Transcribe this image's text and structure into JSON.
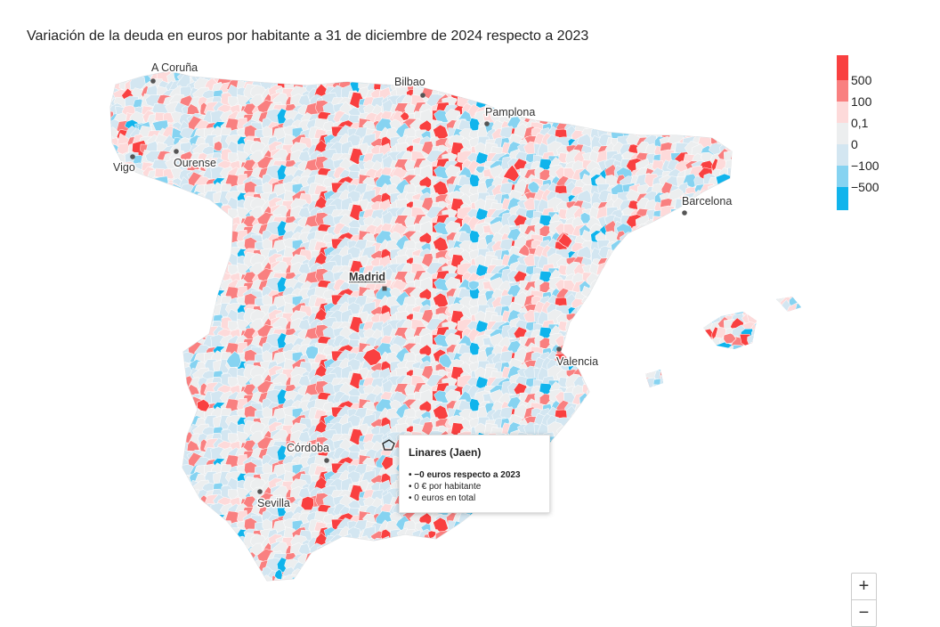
{
  "title": "Variación de la deuda en euros por habitante a 31 de diciembre de 2024 respecto a 2023",
  "legend": {
    "items": [
      {
        "label": "500",
        "color": "#f94040"
      },
      {
        "label": "100",
        "color": "#f98080"
      },
      {
        "label": "0,1",
        "color": "#fddada"
      },
      {
        "label": "0",
        "color": "#eceeef"
      },
      {
        "label": "−100",
        "color": "#d3e6f1"
      },
      {
        "label": "−500",
        "color": "#86d3f1"
      },
      {
        "label": "",
        "color": "#10b4ec"
      }
    ]
  },
  "cities": [
    {
      "name": "A Coruña"
    },
    {
      "name": "Bilbao"
    },
    {
      "name": "Pamplona"
    },
    {
      "name": "Vigo"
    },
    {
      "name": "Ourense"
    },
    {
      "name": "Barcelona"
    },
    {
      "name": "Madrid",
      "capital": true
    },
    {
      "name": "Valencia"
    },
    {
      "name": "Córdoba"
    },
    {
      "name": "Sevilla"
    }
  ],
  "tooltip": {
    "title": "Linares (Jaen)",
    "line1": "• −0 euros respecto a 2023",
    "line2": "• 0 € por habitante",
    "line3": "• 0 euros en total"
  },
  "zoom": {
    "plus": "+",
    "minus": "−"
  }
}
